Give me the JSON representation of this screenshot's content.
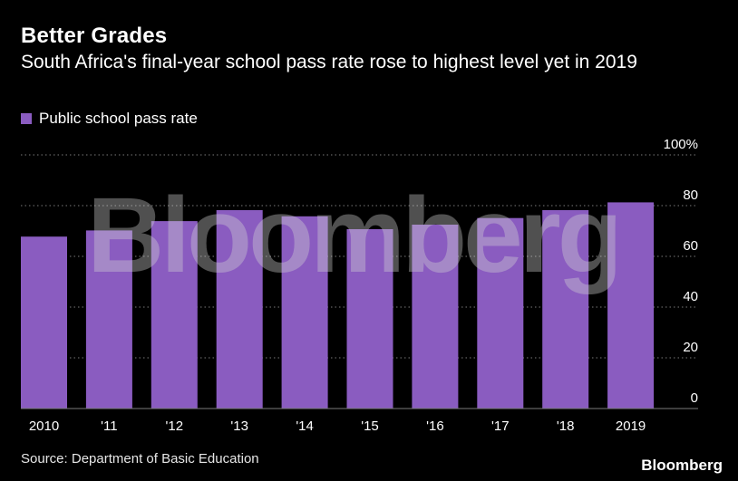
{
  "header": {
    "title": "Better Grades",
    "subtitle": "South Africa's final-year school pass rate rose to highest level yet in 2019"
  },
  "legend": {
    "label": "Public school pass rate"
  },
  "footer": {
    "source": "Source: Department of Basic Education",
    "brand": "Bloomberg"
  },
  "watermark": "Bloomberg",
  "colors": {
    "background": "#000000",
    "bar": "#8a5cc0",
    "grid": "#7a7a7a",
    "text": "#ffffff"
  },
  "chart_data": {
    "type": "bar",
    "categories": [
      "2010",
      "'11",
      "'12",
      "'13",
      "'14",
      "'15",
      "'16",
      "'17",
      "'18",
      "2019"
    ],
    "series": [
      {
        "name": "Public school pass rate",
        "values": [
          67.8,
          70.2,
          73.9,
          78.2,
          75.8,
          70.7,
          72.5,
          75.1,
          78.2,
          81.3
        ]
      }
    ],
    "yticks": [
      "100%",
      "80",
      "60",
      "40",
      "20",
      "0"
    ],
    "ylim": [
      0,
      100
    ],
    "grid": true,
    "legend_position": "top-left",
    "axis_position": "right"
  }
}
